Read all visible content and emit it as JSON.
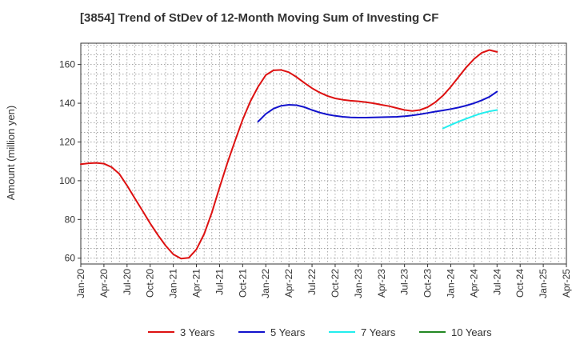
{
  "chart_data": {
    "type": "line",
    "title": "[3854]  Trend of StDev of 12-Month Moving Sum of Investing CF",
    "xlabel": "",
    "ylabel": "Amount (million yen)",
    "ylim": [
      57,
      171
    ],
    "yticks": [
      60,
      80,
      100,
      120,
      140,
      160
    ],
    "x_ticks": [
      "Jan-20",
      "Apr-20",
      "Jul-20",
      "Oct-20",
      "Jan-21",
      "Apr-21",
      "Jul-21",
      "Oct-21",
      "Jan-22",
      "Apr-22",
      "Jul-22",
      "Oct-22",
      "Jan-23",
      "Apr-23",
      "Jul-23",
      "Oct-23",
      "Jan-24",
      "Apr-24",
      "Jul-24",
      "Oct-24",
      "Jan-25",
      "Apr-25"
    ],
    "grid": true,
    "legend_position": "bottom",
    "series": [
      {
        "name": "3 Years",
        "color": "#dd1111",
        "points": [
          [
            "2020-01",
            108.5
          ],
          [
            "2020-02",
            109.0
          ],
          [
            "2020-03",
            109.2
          ],
          [
            "2020-04",
            108.8
          ],
          [
            "2020-05",
            107.0
          ],
          [
            "2020-06",
            103.5
          ],
          [
            "2020-07",
            97.5
          ],
          [
            "2020-08",
            91.0
          ],
          [
            "2020-09",
            84.5
          ],
          [
            "2020-10",
            78.0
          ],
          [
            "2020-11",
            72.0
          ],
          [
            "2020-12",
            66.5
          ],
          [
            "2021-01",
            62.0
          ],
          [
            "2021-02",
            59.8
          ],
          [
            "2021-03",
            60.2
          ],
          [
            "2021-04",
            64.5
          ],
          [
            "2021-05",
            72.5
          ],
          [
            "2021-06",
            83.5
          ],
          [
            "2021-07",
            96.5
          ],
          [
            "2021-08",
            109.0
          ],
          [
            "2021-09",
            120.5
          ],
          [
            "2021-10",
            131.5
          ],
          [
            "2021-11",
            141.0
          ],
          [
            "2021-12",
            148.5
          ],
          [
            "2022-01",
            154.5
          ],
          [
            "2022-02",
            157.0
          ],
          [
            "2022-03",
            157.2
          ],
          [
            "2022-04",
            156.0
          ],
          [
            "2022-05",
            153.5
          ],
          [
            "2022-06",
            150.5
          ],
          [
            "2022-07",
            147.8
          ],
          [
            "2022-08",
            145.5
          ],
          [
            "2022-09",
            143.8
          ],
          [
            "2022-10",
            142.5
          ],
          [
            "2022-11",
            141.8
          ],
          [
            "2022-12",
            141.3
          ],
          [
            "2023-01",
            141.0
          ],
          [
            "2023-02",
            140.5
          ],
          [
            "2023-03",
            140.0
          ],
          [
            "2023-04",
            139.2
          ],
          [
            "2023-05",
            138.5
          ],
          [
            "2023-06",
            137.5
          ],
          [
            "2023-07",
            136.5
          ],
          [
            "2023-08",
            136.0
          ],
          [
            "2023-09",
            136.5
          ],
          [
            "2023-10",
            138.0
          ],
          [
            "2023-11",
            140.5
          ],
          [
            "2023-12",
            144.0
          ],
          [
            "2024-01",
            148.5
          ],
          [
            "2024-02",
            153.5
          ],
          [
            "2024-03",
            158.5
          ],
          [
            "2024-04",
            162.8
          ],
          [
            "2024-05",
            166.0
          ],
          [
            "2024-06",
            167.5
          ],
          [
            "2024-07",
            166.5
          ]
        ]
      },
      {
        "name": "5 Years",
        "color": "#1111cc",
        "points": [
          [
            "2021-12",
            130.5
          ],
          [
            "2022-01",
            134.5
          ],
          [
            "2022-02",
            137.2
          ],
          [
            "2022-03",
            138.7
          ],
          [
            "2022-04",
            139.2
          ],
          [
            "2022-05",
            139.0
          ],
          [
            "2022-06",
            138.0
          ],
          [
            "2022-07",
            136.5
          ],
          [
            "2022-08",
            135.2
          ],
          [
            "2022-09",
            134.2
          ],
          [
            "2022-10",
            133.5
          ],
          [
            "2022-11",
            133.0
          ],
          [
            "2022-12",
            132.7
          ],
          [
            "2023-01",
            132.6
          ],
          [
            "2023-02",
            132.6
          ],
          [
            "2023-03",
            132.7
          ],
          [
            "2023-04",
            132.8
          ],
          [
            "2023-05",
            132.9
          ],
          [
            "2023-06",
            133.0
          ],
          [
            "2023-07",
            133.3
          ],
          [
            "2023-08",
            133.7
          ],
          [
            "2023-09",
            134.3
          ],
          [
            "2023-10",
            135.0
          ],
          [
            "2023-11",
            135.7
          ],
          [
            "2023-12",
            136.3
          ],
          [
            "2024-01",
            137.0
          ],
          [
            "2024-02",
            137.8
          ],
          [
            "2024-03",
            138.8
          ],
          [
            "2024-04",
            140.0
          ],
          [
            "2024-05",
            141.5
          ],
          [
            "2024-06",
            143.3
          ],
          [
            "2024-07",
            146.0
          ]
        ]
      },
      {
        "name": "7 Years",
        "color": "#22eeee",
        "points": [
          [
            "2023-12",
            127.0
          ],
          [
            "2024-01",
            128.8
          ],
          [
            "2024-02",
            130.5
          ],
          [
            "2024-03",
            132.0
          ],
          [
            "2024-04",
            133.5
          ],
          [
            "2024-05",
            134.8
          ],
          [
            "2024-06",
            135.8
          ],
          [
            "2024-07",
            136.5
          ]
        ]
      },
      {
        "name": "10 Years",
        "color": "#228822",
        "points": []
      }
    ]
  }
}
